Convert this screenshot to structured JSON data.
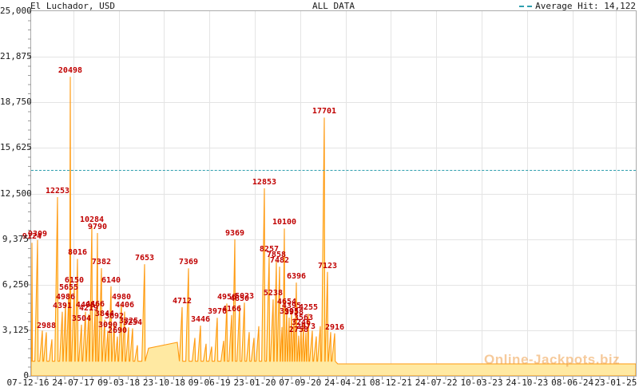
{
  "chart": {
    "title": "El Luchador, USD",
    "subtitle": "ALL DATA",
    "legend_label": "Average Hit: 14,122",
    "watermark": "Online-Jackpots.biz",
    "colors": {
      "line": "#ff9a10",
      "fill": "#ffe9a2",
      "hit_label": "#c00000",
      "average_line": "#2f9fae",
      "grid": "#e4e4e4",
      "axis": "#ababab"
    }
  },
  "chart_data": {
    "type": "area",
    "title": "El Luchador, USD",
    "subtitle": "ALL DATA",
    "average_hit": 14122,
    "average_hit_display": "14,122",
    "ylim": [
      0,
      25000
    ],
    "y_ticks": [
      "25,000",
      "21,875",
      "18,750",
      "15,625",
      "12,500",
      "9,375",
      "6,250",
      "3,125",
      "0"
    ],
    "x_ticks": [
      "07-12-16",
      "24-07-17",
      "09-03-18",
      "23-10-18",
      "09-06-19",
      "23-01-20",
      "07-09-20",
      "24-04-21",
      "08-12-21",
      "24-07-22",
      "10-03-23",
      "24-10-23",
      "08-06-24",
      "23-01-25"
    ],
    "x_tick_f": [
      -0.0053,
      0.0697,
      0.1448,
      0.2198,
      0.2948,
      0.3699,
      0.4449,
      0.5199,
      0.595,
      0.67,
      0.745,
      0.8201,
      0.8951,
      0.9668
    ],
    "grid": true,
    "legend_position": "top-right",
    "seed_level": 1000,
    "hits": [
      {
        "f": 0.0013,
        "v": 9124,
        "label": true
      },
      {
        "f": 0.0106,
        "v": 9309,
        "label": true
      },
      {
        "f": 0.0185,
        "v": 3100,
        "label": false
      },
      {
        "f": 0.0251,
        "v": 2988,
        "label": true
      },
      {
        "f": 0.0343,
        "v": 2500,
        "label": false
      },
      {
        "f": 0.0436,
        "v": 12253,
        "label": true
      },
      {
        "f": 0.0515,
        "v": 4391,
        "label": true
      },
      {
        "f": 0.0568,
        "v": 4986,
        "label": true
      },
      {
        "f": 0.0621,
        "v": 5655,
        "label": true
      },
      {
        "f": 0.0647,
        "v": 20498,
        "label": true
      },
      {
        "f": 0.0713,
        "v": 6150,
        "label": true
      },
      {
        "f": 0.0766,
        "v": 8016,
        "label": true
      },
      {
        "f": 0.0832,
        "v": 3504,
        "label": true
      },
      {
        "f": 0.0898,
        "v": 4405,
        "label": true
      },
      {
        "f": 0.0951,
        "v": 4219,
        "label": true
      },
      {
        "f": 0.1004,
        "v": 10284,
        "label": true
      },
      {
        "f": 0.1057,
        "v": 4466,
        "label": true
      },
      {
        "f": 0.1096,
        "v": 9790,
        "label": true
      },
      {
        "f": 0.1162,
        "v": 7382,
        "label": true
      },
      {
        "f": 0.1215,
        "v": 3844,
        "label": true
      },
      {
        "f": 0.1268,
        "v": 3090,
        "label": true
      },
      {
        "f": 0.1321,
        "v": 6140,
        "label": true
      },
      {
        "f": 0.1374,
        "v": 3692,
        "label": true
      },
      {
        "f": 0.1427,
        "v": 2690,
        "label": true
      },
      {
        "f": 0.1493,
        "v": 4980,
        "label": true
      },
      {
        "f": 0.1546,
        "v": 4406,
        "label": true
      },
      {
        "f": 0.1612,
        "v": 3325,
        "label": true
      },
      {
        "f": 0.1678,
        "v": 3254,
        "label": true
      },
      {
        "f": 0.1757,
        "v": 2100,
        "label": false
      },
      {
        "f": 0.1876,
        "v": 7653,
        "label": true
      },
      {
        "f": 0.2497,
        "v": 4712,
        "label": true
      },
      {
        "f": 0.2602,
        "v": 7369,
        "label": true
      },
      {
        "f": 0.2708,
        "v": 2600,
        "label": false
      },
      {
        "f": 0.2801,
        "v": 3446,
        "label": true
      },
      {
        "f": 0.2893,
        "v": 2200,
        "label": false
      },
      {
        "f": 0.2985,
        "v": 2000,
        "label": false
      },
      {
        "f": 0.3078,
        "v": 3976,
        "label": true
      },
      {
        "f": 0.3184,
        "v": 2400,
        "label": false
      },
      {
        "f": 0.3237,
        "v": 4956,
        "label": true
      },
      {
        "f": 0.3316,
        "v": 4166,
        "label": true
      },
      {
        "f": 0.3369,
        "v": 9369,
        "label": true
      },
      {
        "f": 0.3448,
        "v": 4850,
        "label": true
      },
      {
        "f": 0.3527,
        "v": 5023,
        "label": true
      },
      {
        "f": 0.3606,
        "v": 3000,
        "label": false
      },
      {
        "f": 0.3685,
        "v": 2600,
        "label": false
      },
      {
        "f": 0.3765,
        "v": 3400,
        "label": false
      },
      {
        "f": 0.3857,
        "v": 12853,
        "label": true
      },
      {
        "f": 0.3936,
        "v": 8257,
        "label": true
      },
      {
        "f": 0.4002,
        "v": 5238,
        "label": true
      },
      {
        "f": 0.4055,
        "v": 7858,
        "label": true
      },
      {
        "f": 0.4108,
        "v": 7482,
        "label": true
      },
      {
        "f": 0.4148,
        "v": 3350,
        "label": false
      },
      {
        "f": 0.4188,
        "v": 10100,
        "label": true
      },
      {
        "f": 0.4227,
        "v": 4654,
        "label": true
      },
      {
        "f": 0.4267,
        "v": 3995,
        "label": true
      },
      {
        "f": 0.4306,
        "v": 4395,
        "label": true
      },
      {
        "f": 0.4346,
        "v": 3958,
        "label": true
      },
      {
        "f": 0.4386,
        "v": 6396,
        "label": true
      },
      {
        "f": 0.4425,
        "v": 2758,
        "label": true
      },
      {
        "f": 0.4465,
        "v": 3246,
        "label": true
      },
      {
        "f": 0.4505,
        "v": 3563,
        "label": true
      },
      {
        "f": 0.4544,
        "v": 2973,
        "label": true
      },
      {
        "f": 0.4584,
        "v": 4255,
        "label": true
      },
      {
        "f": 0.465,
        "v": 3100,
        "label": false
      },
      {
        "f": 0.4716,
        "v": 2700,
        "label": false
      },
      {
        "f": 0.4782,
        "v": 3400,
        "label": false
      },
      {
        "f": 0.4848,
        "v": 17701,
        "label": true
      },
      {
        "f": 0.4901,
        "v": 7123,
        "label": true
      },
      {
        "f": 0.4954,
        "v": 3000,
        "label": false
      },
      {
        "f": 0.502,
        "v": 2916,
        "label": true
      }
    ],
    "flats": [
      {
        "f0": 0.1942,
        "v0": 1900,
        "f1": 0.2418,
        "v1": 2300
      },
      {
        "f0": 0.507,
        "v0": 820,
        "f1": 1.0,
        "v1": 820
      }
    ]
  }
}
